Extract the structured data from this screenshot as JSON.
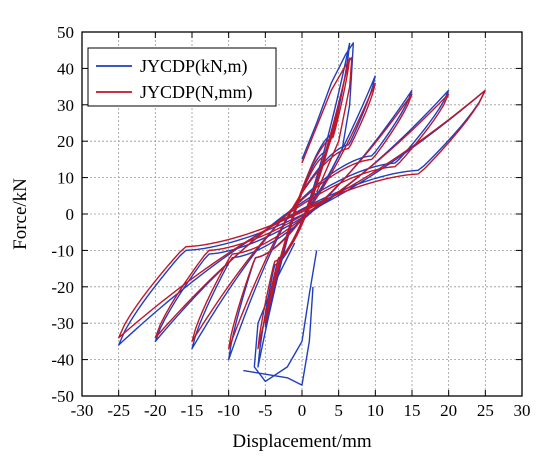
{
  "chart_data": {
    "type": "line",
    "title": "",
    "xlabel": "Displacement/mm",
    "ylabel": "Force/kN",
    "xlim": [
      -30,
      30
    ],
    "ylim": [
      -50,
      50
    ],
    "xticks": [
      -30,
      -25,
      -20,
      -15,
      -10,
      -5,
      0,
      5,
      10,
      15,
      20,
      25,
      30
    ],
    "yticks": [
      -50,
      -40,
      -30,
      -20,
      -10,
      0,
      10,
      20,
      30,
      40,
      50
    ],
    "grid": true,
    "legend_position": "top-left",
    "series": [
      {
        "name": "JYCDP(kN,m)",
        "color": "#1f3fbf",
        "loops": [
          {
            "amp_pos": 5,
            "amp_neg": -5,
            "f_pos": 30,
            "f_neg": -31,
            "pinch_pos": 17,
            "pinch_neg": -12
          },
          {
            "amp_pos": 6.5,
            "amp_neg": -6,
            "f_pos": 47,
            "f_neg": -42,
            "pinch_pos": 22,
            "pinch_neg": -14
          },
          {
            "amp_pos": 10,
            "amp_neg": -10,
            "f_pos": 38,
            "f_neg": -40,
            "pinch_pos": 19,
            "pinch_neg": -12
          },
          {
            "amp_pos": 15,
            "amp_neg": -15,
            "f_pos": 34,
            "f_neg": -37,
            "pinch_pos": 16,
            "pinch_neg": -12
          },
          {
            "amp_pos": 20,
            "amp_neg": -20,
            "f_pos": 34,
            "f_neg": -35,
            "pinch_pos": 14,
            "pinch_neg": -11
          },
          {
            "amp_pos": 25,
            "amp_neg": -25,
            "f_pos": 34,
            "f_neg": -36,
            "pinch_pos": 12,
            "pinch_neg": -10
          }
        ],
        "excursions": [
          {
            "x": [
              0,
              2,
              4,
              6,
              7,
              6.8,
              6.5,
              5.5,
              3,
              1
            ],
            "y": [
              15,
              25,
              36,
              44,
              47,
              40,
              30,
              18,
              8,
              3
            ]
          },
          {
            "x": [
              2,
              1,
              0,
              -2,
              -5,
              -6.5,
              -6,
              -4,
              -1
            ],
            "y": [
              -10,
              -22,
              -35,
              -42,
              -46,
              -42,
              -30,
              -20,
              -8
            ]
          },
          {
            "x": [
              1.5,
              1,
              0,
              -2,
              -5,
              -8
            ],
            "y": [
              -20,
              -35,
              -47,
              -45,
              -44,
              -43
            ]
          }
        ]
      },
      {
        "name": "JYCDP(N,mm)",
        "color": "#c0162a",
        "loops": [
          {
            "amp_pos": 5,
            "amp_neg": -5,
            "f_pos": 29,
            "f_neg": -30,
            "pinch_pos": 16,
            "pinch_neg": -12
          },
          {
            "amp_pos": 6.5,
            "amp_neg": -6,
            "f_pos": 43,
            "f_neg": -37,
            "pinch_pos": 21,
            "pinch_neg": -13
          },
          {
            "amp_pos": 10,
            "amp_neg": -10,
            "f_pos": 36,
            "f_neg": -37,
            "pinch_pos": 18,
            "pinch_neg": -12
          },
          {
            "amp_pos": 15,
            "amp_neg": -15,
            "f_pos": 33,
            "f_neg": -35,
            "pinch_pos": 15,
            "pinch_neg": -11
          },
          {
            "amp_pos": 20,
            "amp_neg": -20,
            "f_pos": 33,
            "f_neg": -34,
            "pinch_pos": 13,
            "pinch_neg": -10
          },
          {
            "amp_pos": 25,
            "amp_neg": -25,
            "f_pos": 34,
            "f_neg": -34,
            "pinch_pos": 11,
            "pinch_neg": -9
          }
        ],
        "excursions": [
          {
            "x": [
              0,
              2,
              4,
              6,
              6.8,
              6.5,
              5,
              2
            ],
            "y": [
              14,
              24,
              34,
              41,
              43,
              35,
              20,
              6
            ]
          }
        ]
      }
    ]
  }
}
